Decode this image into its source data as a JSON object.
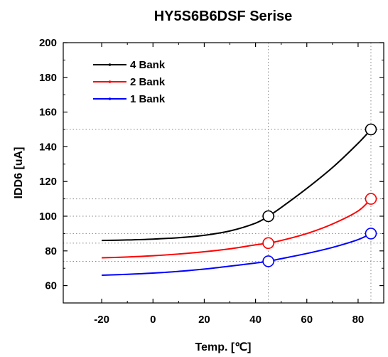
{
  "chart_data": {
    "type": "line",
    "title": "HY5S6B6DSF Serise",
    "xlabel": "Temp. [℃]",
    "ylabel": "IDD6 [uA]",
    "xlim": [
      -35,
      90
    ],
    "ylim": [
      50,
      200
    ],
    "xticks": [
      -20,
      0,
      20,
      40,
      60,
      80
    ],
    "yticks": [
      60,
      80,
      100,
      120,
      140,
      160,
      180,
      200
    ],
    "grid": false,
    "legend_position": "top-left",
    "series": [
      {
        "name": "4 Bank",
        "color": "#000000",
        "x": [
          -20,
          -10,
          0,
          10,
          20,
          30,
          40,
          45,
          50,
          60,
          70,
          80,
          85
        ],
        "y": [
          86,
          86.3,
          86.8,
          87.6,
          89,
          91.5,
          96,
          100,
          105,
          116,
          128,
          142,
          150
        ],
        "markers": [
          {
            "x": 45,
            "y": 100
          },
          {
            "x": 85,
            "y": 150
          }
        ]
      },
      {
        "name": "2 Bank",
        "color": "#ff0000",
        "x": [
          -20,
          -10,
          0,
          10,
          20,
          30,
          40,
          45,
          50,
          60,
          70,
          80,
          85
        ],
        "y": [
          76,
          76.5,
          77.2,
          78.2,
          79.5,
          81.2,
          83.5,
          84.5,
          86,
          90,
          95.5,
          103,
          110
        ],
        "markers": [
          {
            "x": 45,
            "y": 84.5
          },
          {
            "x": 85,
            "y": 110
          }
        ]
      },
      {
        "name": "1 Bank",
        "color": "#0000ff",
        "x": [
          -20,
          -10,
          0,
          10,
          20,
          30,
          40,
          45,
          50,
          60,
          70,
          80,
          85
        ],
        "y": [
          66,
          66.5,
          67.2,
          68.2,
          69.5,
          71.2,
          73,
          74,
          75.5,
          78.5,
          82,
          86.5,
          90
        ],
        "markers": [
          {
            "x": 45,
            "y": 74
          },
          {
            "x": 85,
            "y": 90
          }
        ]
      }
    ],
    "reference_lines": {
      "horizontal": [
        150,
        110,
        100,
        90,
        84.5,
        74
      ],
      "vertical": [
        45,
        85
      ]
    }
  }
}
